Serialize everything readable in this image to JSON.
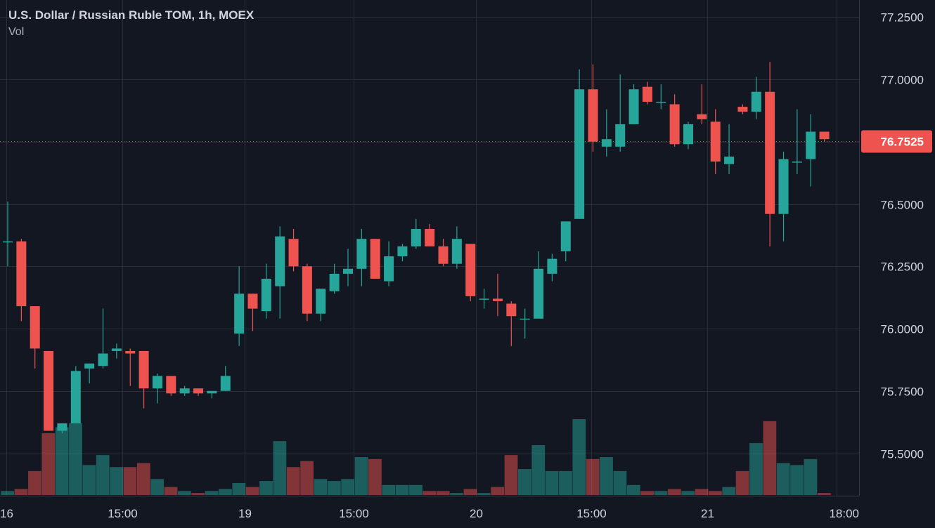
{
  "header": {
    "symbol_title": "U.S. Dollar / Russian Ruble TOM, 1h, MOEX",
    "volume_label": "Vol"
  },
  "colors": {
    "background": "#131722",
    "grid": "#2a2e39",
    "up": "#26a69a",
    "down": "#ef5350",
    "up_volume": "#26a69a",
    "down_volume": "#ef5350",
    "axis_text": "#d1d4dc",
    "last_price_badge": "#ef5350"
  },
  "chart_data": {
    "type": "candlestick",
    "title": "U.S. Dollar / Russian Ruble TOM, 1h, MOEX",
    "y_axis": {
      "ticks": [
        "77.2500",
        "77.0000",
        "76.7500",
        "76.5000",
        "76.2500",
        "76.0000",
        "75.7500",
        "75.5000"
      ],
      "range": [
        75.32,
        77.31
      ],
      "position": "right"
    },
    "x_axis": {
      "ticks": [
        {
          "label": "16",
          "index": 0
        },
        {
          "label": "15:00",
          "index": 8.5
        },
        {
          "label": "19",
          "index": 17.5
        },
        {
          "label": "15:00",
          "index": 25.5
        },
        {
          "label": "20",
          "index": 34.5
        },
        {
          "label": "15:00",
          "index": 43
        },
        {
          "label": "21",
          "index": 51.5
        },
        {
          "label": "18:00",
          "index": 61
        }
      ]
    },
    "last_price": "76.7525",
    "grid": true,
    "candles": [
      {
        "o": 76.35,
        "h": 76.51,
        "l": 76.25,
        "c": 76.35,
        "v": 2
      },
      {
        "o": 76.35,
        "h": 76.36,
        "l": 76.03,
        "c": 76.09,
        "v": 3
      },
      {
        "o": 76.09,
        "h": 76.09,
        "l": 75.84,
        "c": 75.92,
        "v": 12
      },
      {
        "o": 75.91,
        "h": 75.91,
        "l": 75.59,
        "c": 75.59,
        "v": 31
      },
      {
        "o": 75.59,
        "h": 75.62,
        "l": 75.58,
        "c": 75.62,
        "v": 34
      },
      {
        "o": 75.62,
        "h": 75.85,
        "l": 75.62,
        "c": 75.83,
        "v": 36
      },
      {
        "o": 75.84,
        "h": 75.86,
        "l": 75.78,
        "c": 75.86,
        "v": 15
      },
      {
        "o": 75.85,
        "h": 76.08,
        "l": 75.84,
        "c": 75.9,
        "v": 20
      },
      {
        "o": 75.91,
        "h": 75.94,
        "l": 75.88,
        "c": 75.92,
        "v": 14
      },
      {
        "o": 75.91,
        "h": 75.92,
        "l": 75.77,
        "c": 75.9,
        "v": 14
      },
      {
        "o": 75.91,
        "h": 75.91,
        "l": 75.68,
        "c": 75.76,
        "v": 16
      },
      {
        "o": 75.76,
        "h": 75.82,
        "l": 75.7,
        "c": 75.81,
        "v": 8
      },
      {
        "o": 75.81,
        "h": 75.81,
        "l": 75.73,
        "c": 75.74,
        "v": 4
      },
      {
        "o": 75.74,
        "h": 75.77,
        "l": 75.73,
        "c": 75.76,
        "v": 2
      },
      {
        "o": 75.76,
        "h": 75.76,
        "l": 75.73,
        "c": 75.74,
        "v": 1
      },
      {
        "o": 75.74,
        "h": 75.75,
        "l": 75.72,
        "c": 75.75,
        "v": 2
      },
      {
        "o": 75.75,
        "h": 75.85,
        "l": 75.75,
        "c": 75.81,
        "v": 3
      },
      {
        "o": 75.98,
        "h": 76.25,
        "l": 75.93,
        "c": 76.14,
        "v": 6
      },
      {
        "o": 76.14,
        "h": 76.14,
        "l": 75.99,
        "c": 76.08,
        "v": 4
      },
      {
        "o": 76.07,
        "h": 76.26,
        "l": 76.04,
        "c": 76.2,
        "v": 7
      },
      {
        "o": 76.17,
        "h": 76.41,
        "l": 76.04,
        "c": 76.37,
        "v": 27
      },
      {
        "o": 76.36,
        "h": 76.4,
        "l": 76.23,
        "c": 76.25,
        "v": 14
      },
      {
        "o": 76.25,
        "h": 76.26,
        "l": 76.03,
        "c": 76.06,
        "v": 17
      },
      {
        "o": 76.06,
        "h": 76.16,
        "l": 76.03,
        "c": 76.16,
        "v": 8
      },
      {
        "o": 76.15,
        "h": 76.26,
        "l": 76.14,
        "c": 76.22,
        "v": 7
      },
      {
        "o": 76.22,
        "h": 76.32,
        "l": 76.17,
        "c": 76.24,
        "v": 8
      },
      {
        "o": 76.24,
        "h": 76.4,
        "l": 76.17,
        "c": 76.36,
        "v": 19
      },
      {
        "o": 76.36,
        "h": 76.36,
        "l": 76.2,
        "c": 76.2,
        "v": 18
      },
      {
        "o": 76.19,
        "h": 76.35,
        "l": 76.17,
        "c": 76.29,
        "v": 5
      },
      {
        "o": 76.29,
        "h": 76.34,
        "l": 76.27,
        "c": 76.33,
        "v": 5
      },
      {
        "o": 76.33,
        "h": 76.44,
        "l": 76.32,
        "c": 76.4,
        "v": 5
      },
      {
        "o": 76.4,
        "h": 76.42,
        "l": 76.34,
        "c": 76.33,
        "v": 2
      },
      {
        "o": 76.33,
        "h": 76.36,
        "l": 76.25,
        "c": 76.26,
        "v": 2
      },
      {
        "o": 76.26,
        "h": 76.41,
        "l": 76.24,
        "c": 76.36,
        "v": 1
      },
      {
        "o": 76.34,
        "h": 76.34,
        "l": 76.11,
        "c": 76.13,
        "v": 3
      },
      {
        "o": 76.12,
        "h": 76.16,
        "l": 76.08,
        "c": 76.12,
        "v": 1
      },
      {
        "o": 76.12,
        "h": 76.22,
        "l": 76.05,
        "c": 76.11,
        "v": 4
      },
      {
        "o": 76.1,
        "h": 76.11,
        "l": 75.93,
        "c": 76.05,
        "v": 20
      },
      {
        "o": 76.04,
        "h": 76.08,
        "l": 75.96,
        "c": 76.04,
        "v": 13
      },
      {
        "o": 76.04,
        "h": 76.31,
        "l": 76.04,
        "c": 76.24,
        "v": 25
      },
      {
        "o": 76.22,
        "h": 76.3,
        "l": 76.19,
        "c": 76.28,
        "v": 12
      },
      {
        "o": 76.31,
        "h": 76.43,
        "l": 76.27,
        "c": 76.43,
        "v": 12
      },
      {
        "o": 76.44,
        "h": 77.04,
        "l": 76.44,
        "c": 76.96,
        "v": 38
      },
      {
        "o": 76.96,
        "h": 77.06,
        "l": 76.71,
        "c": 76.75,
        "v": 18
      },
      {
        "o": 76.73,
        "h": 76.88,
        "l": 76.69,
        "c": 76.76,
        "v": 19
      },
      {
        "o": 76.73,
        "h": 77.02,
        "l": 76.71,
        "c": 76.82,
        "v": 12
      },
      {
        "o": 76.82,
        "h": 76.98,
        "l": 76.82,
        "c": 76.96,
        "v": 5
      },
      {
        "o": 76.97,
        "h": 76.99,
        "l": 76.9,
        "c": 76.91,
        "v": 2
      },
      {
        "o": 76.91,
        "h": 76.98,
        "l": 76.88,
        "c": 76.91,
        "v": 2
      },
      {
        "o": 76.9,
        "h": 76.94,
        "l": 76.73,
        "c": 76.74,
        "v": 3
      },
      {
        "o": 76.74,
        "h": 76.83,
        "l": 76.72,
        "c": 76.82,
        "v": 2
      },
      {
        "o": 76.86,
        "h": 76.98,
        "l": 76.82,
        "c": 76.84,
        "v": 3
      },
      {
        "o": 76.83,
        "h": 76.88,
        "l": 76.62,
        "c": 76.67,
        "v": 2
      },
      {
        "o": 76.66,
        "h": 76.82,
        "l": 76.62,
        "c": 76.69,
        "v": 4
      },
      {
        "o": 76.89,
        "h": 76.9,
        "l": 76.86,
        "c": 76.87,
        "v": 12
      },
      {
        "o": 76.87,
        "h": 77.01,
        "l": 76.84,
        "c": 76.95,
        "v": 26
      },
      {
        "o": 76.95,
        "h": 77.07,
        "l": 76.33,
        "c": 76.46,
        "v": 37
      },
      {
        "o": 76.46,
        "h": 76.71,
        "l": 76.35,
        "c": 76.68,
        "v": 16
      },
      {
        "o": 76.67,
        "h": 76.88,
        "l": 76.62,
        "c": 76.67,
        "v": 15
      },
      {
        "o": 76.68,
        "h": 76.86,
        "l": 76.57,
        "c": 76.79,
        "v": 18
      },
      {
        "o": 76.79,
        "h": 76.79,
        "l": 76.75,
        "c": 76.76,
        "v": 1
      }
    ]
  }
}
